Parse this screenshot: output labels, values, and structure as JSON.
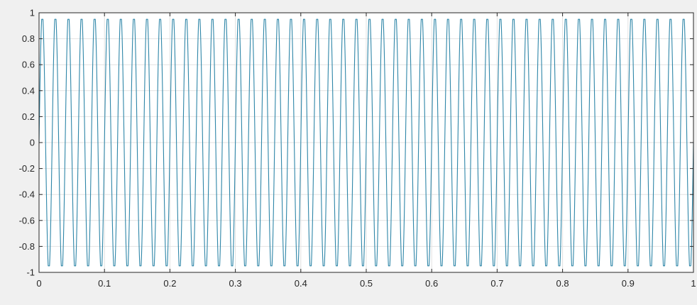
{
  "chart_data": {
    "type": "line",
    "title": "",
    "xlabel": "",
    "ylabel": "",
    "xlim": [
      0,
      1
    ],
    "ylim": [
      -1,
      1
    ],
    "grid": true,
    "x_ticks": [
      0,
      0.1,
      0.2,
      0.3,
      0.4,
      0.5,
      0.6,
      0.7,
      0.8,
      0.9,
      1
    ],
    "x_tick_labels": [
      "0",
      "0.1",
      "0.2",
      "0.3",
      "0.4",
      "0.5",
      "0.6",
      "0.7",
      "0.8",
      "0.9",
      "1"
    ],
    "y_ticks": [
      1,
      0.8,
      0.6,
      0.4,
      0.2,
      0,
      -0.2,
      -0.4,
      -0.6,
      -0.8,
      -1
    ],
    "y_tick_labels": [
      "1",
      "0.8",
      "0.6",
      "0.4",
      "0.2",
      "0",
      "-0.2",
      "-0.4",
      "-0.6",
      "-0.8",
      "-1"
    ],
    "series": [
      {
        "color": "#2e86a8",
        "shape": "clipped-sine",
        "frequency_hz": 50,
        "amplitude": 1,
        "clip_level": 0.95,
        "x_range": [
          0,
          1
        ]
      }
    ]
  },
  "colors": {
    "figure_background": "#f0f0f0",
    "axes_background": "#ffffff",
    "grid": "#e2e2e2",
    "axes_edge": "#262626",
    "line": "#2e86a8"
  }
}
